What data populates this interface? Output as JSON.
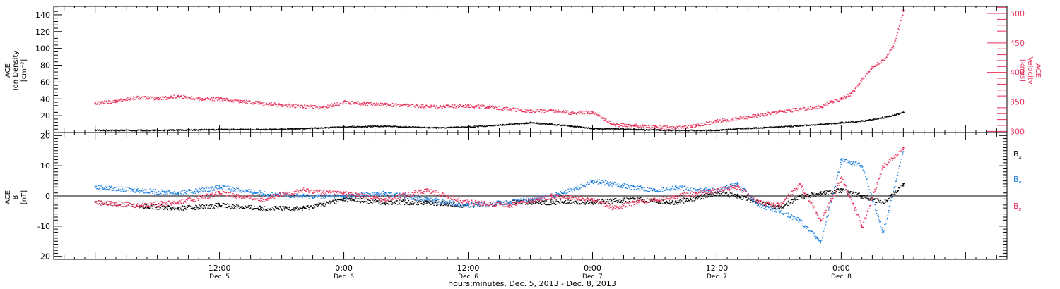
{
  "chart_data": [
    {
      "type": "scatter",
      "panel": "top",
      "left_axis": {
        "label_lines": [
          "ACE",
          "Ion Density",
          "[cm⁻³]"
        ],
        "ylim": [
          0,
          150
        ],
        "ticks": [
          "0",
          "20",
          "40",
          "60",
          "80",
          "100",
          "120",
          "140"
        ],
        "tick_values": [
          0,
          20,
          40,
          60,
          80,
          100,
          120,
          140
        ],
        "color": "#000000"
      },
      "right_axis": {
        "label_lines": [
          "ACE",
          "Velocity",
          "[km/s]"
        ],
        "ylim": [
          298,
          512
        ],
        "ticks": [
          "300",
          "350",
          "400",
          "450",
          "500"
        ],
        "tick_values": [
          300,
          350,
          400,
          450,
          500
        ],
        "color": "#e8305a"
      },
      "series": [
        {
          "name": "Ion Density",
          "axis": "left",
          "color": "#000000",
          "x_hours": [
            0,
            6,
            12,
            18,
            20,
            24,
            28,
            30,
            33,
            36,
            40,
            42,
            44,
            46,
            48,
            52,
            56,
            60,
            62,
            66,
            70,
            72,
            74,
            76,
            78
          ],
          "y": [
            3,
            3,
            4,
            4,
            5,
            7,
            8,
            7,
            6,
            7,
            10,
            12,
            10,
            8,
            5,
            4,
            3,
            3,
            5,
            7,
            10,
            12,
            14,
            18,
            24
          ]
        },
        {
          "name": "Velocity",
          "axis": "right",
          "color": "#e8305a",
          "x_hours": [
            0,
            2,
            4,
            6,
            8,
            10,
            12,
            14,
            16,
            18,
            20,
            22,
            24,
            26,
            28,
            30,
            32,
            34,
            36,
            38,
            40,
            42,
            44,
            46,
            48,
            50,
            52,
            54,
            56,
            58,
            60,
            62,
            64,
            66,
            68,
            70,
            71,
            72,
            73,
            74,
            75,
            76,
            77,
            78
          ],
          "y": [
            348,
            352,
            358,
            356,
            360,
            356,
            355,
            352,
            348,
            345,
            343,
            341,
            350,
            348,
            346,
            345,
            343,
            343,
            344,
            342,
            338,
            335,
            336,
            332,
            333,
            312,
            310,
            308,
            306,
            310,
            318,
            322,
            328,
            334,
            338,
            342,
            350,
            356,
            365,
            390,
            410,
            420,
            445,
            505
          ]
        }
      ]
    },
    {
      "type": "scatter",
      "panel": "bottom",
      "left_axis": {
        "label_lines": [
          "ACE",
          "B",
          "[nT]"
        ],
        "ylim": [
          -21,
          21
        ],
        "ticks": [
          "-20",
          "-10",
          "0",
          "10",
          "20"
        ],
        "tick_values": [
          -20,
          -10,
          0,
          10,
          20
        ]
      },
      "legend": [
        {
          "text": "B",
          "sub": "x",
          "color": "#000000"
        },
        {
          "text": "B",
          "sub": "y",
          "color": "#1e7fe0"
        },
        {
          "text": "B",
          "sub": "z",
          "color": "#e8305a"
        }
      ],
      "series": [
        {
          "name": "Bx",
          "color": "#000000",
          "x_hours": [
            0,
            4,
            8,
            12,
            16,
            20,
            24,
            28,
            32,
            36,
            40,
            44,
            48,
            52,
            56,
            60,
            62,
            64,
            66,
            68,
            70,
            72,
            74,
            76,
            78
          ],
          "y": [
            -2,
            -3,
            -4,
            -3,
            -4,
            -4,
            -1,
            -2,
            -2,
            -3,
            -2,
            -2,
            -2,
            -1,
            -2,
            1,
            0,
            -2,
            -4,
            0,
            1,
            2,
            0,
            -2,
            4
          ]
        },
        {
          "name": "By",
          "color": "#1e7fe0",
          "x_hours": [
            0,
            4,
            8,
            12,
            16,
            20,
            24,
            28,
            32,
            36,
            40,
            44,
            46,
            48,
            50,
            52,
            54,
            56,
            58,
            60,
            62,
            64,
            66,
            68,
            70,
            72,
            74,
            76,
            78
          ],
          "y": [
            3,
            2,
            1,
            3,
            1,
            0,
            0,
            1,
            -1,
            -3,
            -2,
            0,
            2,
            5,
            4,
            3,
            2,
            3,
            2,
            2,
            4,
            -3,
            -5,
            -8,
            -15,
            12,
            10,
            -12,
            16
          ]
        },
        {
          "name": "Bz",
          "color": "#e8305a",
          "x_hours": [
            0,
            4,
            8,
            12,
            16,
            20,
            24,
            28,
            32,
            36,
            40,
            44,
            48,
            50,
            52,
            54,
            56,
            58,
            60,
            62,
            64,
            66,
            68,
            70,
            72,
            74,
            76,
            78
          ],
          "y": [
            -2,
            -3,
            -2,
            1,
            -1,
            2,
            1,
            -1,
            2,
            -2,
            -3,
            0,
            -1,
            -4,
            -2,
            -1,
            0,
            1,
            2,
            3,
            -2,
            -3,
            4,
            -8,
            6,
            -10,
            10,
            16
          ]
        }
      ]
    }
  ],
  "x_axis": {
    "xlim_hours": [
      -4,
      88
    ],
    "ticks": [
      {
        "hour": 12,
        "time": "12:00",
        "day": "Dec. 5"
      },
      {
        "hour": 24,
        "time": "0:00",
        "day": "Dec. 6"
      },
      {
        "hour": 36,
        "time": "12:00",
        "day": "Dec. 6"
      },
      {
        "hour": 48,
        "time": "0:00",
        "day": "Dec. 7"
      },
      {
        "hour": 60,
        "time": "12:00",
        "day": "Dec. 7"
      },
      {
        "hour": 72,
        "time": "0:00",
        "day": "Dec. 8"
      }
    ],
    "label": "hours:minutes, Dec.  5, 2013 - Dec.  8, 2013"
  }
}
